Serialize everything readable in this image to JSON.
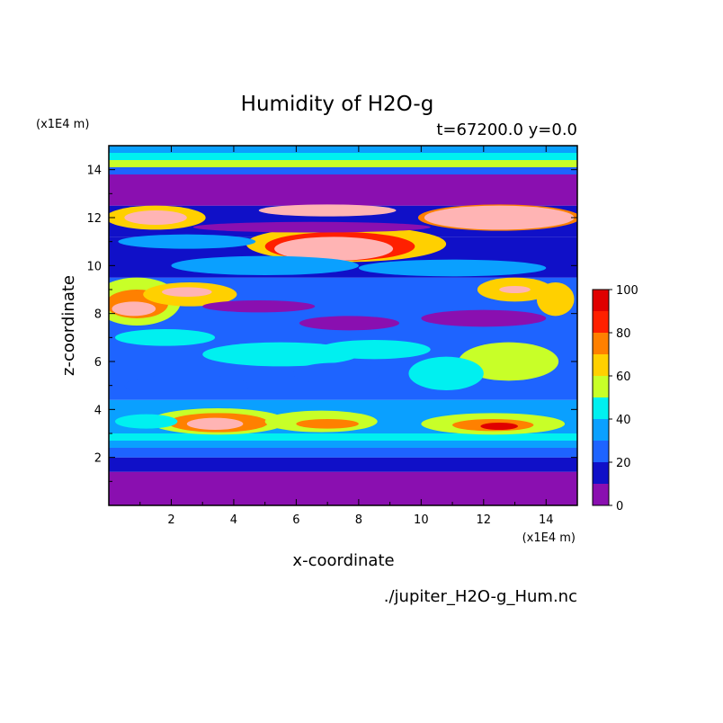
{
  "chart_data": {
    "type": "heatmap",
    "title": "Humidity of H2O-g",
    "subtitle": "t=67200.0 y=0.0",
    "xlabel": "x-coordinate",
    "ylabel": "z-coordinate",
    "x_unit": "(x1E4 m)",
    "y_unit": "(x1E4 m)",
    "source": "./jupiter_H2O-g_Hum.nc",
    "xlim": [
      0,
      15
    ],
    "ylim": [
      0,
      15
    ],
    "x_ticks": [
      "2",
      "4",
      "6",
      "8",
      "10",
      "12",
      "14"
    ],
    "y_ticks": [
      "2",
      "4",
      "6",
      "8",
      "10",
      "12",
      "14"
    ],
    "x_tick_values": [
      2,
      4,
      6,
      8,
      10,
      12,
      14
    ],
    "y_tick_values": [
      2,
      4,
      6,
      8,
      10,
      12,
      14
    ],
    "colorbar": {
      "levels": [
        0,
        10,
        20,
        30,
        40,
        50,
        60,
        70,
        80,
        90,
        100
      ],
      "labels": [
        "0",
        "20",
        "40",
        "60",
        "80",
        "100"
      ],
      "label_values": [
        0,
        20,
        40,
        60,
        80,
        100
      ],
      "colors": [
        "#8a0fb0",
        "#1010c8",
        "#1e64ff",
        "#0aa0ff",
        "#00f0f0",
        "#c8ff28",
        "#ffd000",
        "#ff8000",
        "#ff2000",
        "#e00000",
        "#ffb4b4"
      ]
    },
    "background_layers": [
      {
        "zmin": 0,
        "zmax": 1.4,
        "value": 5
      },
      {
        "zmin": 1.4,
        "zmax": 2.0,
        "value": 15
      },
      {
        "zmin": 2.0,
        "zmax": 2.4,
        "value": 25
      },
      {
        "zmin": 2.4,
        "zmax": 2.7,
        "value": 35
      },
      {
        "zmin": 2.7,
        "zmax": 3.0,
        "value": 45
      },
      {
        "zmin": 3.0,
        "zmax": 4.4,
        "value": 30
      },
      {
        "zmin": 4.4,
        "zmax": 9.5,
        "value": 20
      },
      {
        "zmin": 9.5,
        "zmax": 11.2,
        "value": 15
      },
      {
        "zmin": 11.2,
        "zmax": 12.5,
        "value": 15
      },
      {
        "zmin": 12.5,
        "zmax": 13.8,
        "value": 5
      },
      {
        "zmin": 13.8,
        "zmax": 14.1,
        "value": 25
      },
      {
        "zmin": 14.1,
        "zmax": 14.4,
        "value": 55
      },
      {
        "zmin": 14.4,
        "zmax": 14.7,
        "value": 45
      },
      {
        "zmin": 14.7,
        "zmax": 15.0,
        "value": 30
      }
    ],
    "features": [
      {
        "x": 3.5,
        "z": 3.5,
        "rx": 2.2,
        "rz": 0.55,
        "value": 55
      },
      {
        "x": 3.5,
        "z": 3.45,
        "rx": 1.6,
        "rz": 0.4,
        "value": 75
      },
      {
        "x": 3.4,
        "z": 3.4,
        "rx": 0.9,
        "rz": 0.25,
        "value": 100
      },
      {
        "x": 6.8,
        "z": 3.5,
        "rx": 1.8,
        "rz": 0.45,
        "value": 55
      },
      {
        "x": 7.0,
        "z": 3.4,
        "rx": 1.0,
        "rz": 0.2,
        "value": 75
      },
      {
        "x": 12.3,
        "z": 3.4,
        "rx": 2.3,
        "rz": 0.45,
        "value": 55
      },
      {
        "x": 12.3,
        "z": 3.35,
        "rx": 1.3,
        "rz": 0.25,
        "value": 75
      },
      {
        "x": 12.5,
        "z": 3.3,
        "rx": 0.6,
        "rz": 0.15,
        "value": 90
      },
      {
        "x": 1.2,
        "z": 3.5,
        "rx": 1.0,
        "rz": 0.3,
        "value": 45
      },
      {
        "x": 0.9,
        "z": 8.5,
        "rx": 1.4,
        "rz": 1.0,
        "value": 55
      },
      {
        "x": 0.9,
        "z": 8.4,
        "rx": 1.0,
        "rz": 0.6,
        "value": 75
      },
      {
        "x": 0.8,
        "z": 8.2,
        "rx": 0.7,
        "rz": 0.3,
        "value": 100
      },
      {
        "x": 2.6,
        "z": 8.8,
        "rx": 1.5,
        "rz": 0.5,
        "value": 60
      },
      {
        "x": 2.5,
        "z": 8.9,
        "rx": 0.8,
        "rz": 0.2,
        "value": 100
      },
      {
        "x": 13.0,
        "z": 9.0,
        "rx": 1.2,
        "rz": 0.5,
        "value": 60
      },
      {
        "x": 13.0,
        "z": 9.0,
        "rx": 0.5,
        "rz": 0.15,
        "value": 100
      },
      {
        "x": 14.3,
        "z": 8.6,
        "rx": 0.6,
        "rz": 0.7,
        "value": 60
      },
      {
        "x": 7.6,
        "z": 10.9,
        "rx": 3.2,
        "rz": 0.75,
        "value": 60
      },
      {
        "x": 7.4,
        "z": 10.8,
        "rx": 2.4,
        "rz": 0.6,
        "value": 80
      },
      {
        "x": 7.2,
        "z": 10.7,
        "rx": 1.9,
        "rz": 0.5,
        "value": 100
      },
      {
        "x": 1.5,
        "z": 12.0,
        "rx": 1.6,
        "rz": 0.5,
        "value": 60
      },
      {
        "x": 1.5,
        "z": 12.0,
        "rx": 1.0,
        "rz": 0.3,
        "value": 100
      },
      {
        "x": 7.0,
        "z": 12.3,
        "rx": 2.2,
        "rz": 0.25,
        "value": 100
      },
      {
        "x": 12.5,
        "z": 12.0,
        "rx": 2.6,
        "rz": 0.55,
        "value": 70
      },
      {
        "x": 12.5,
        "z": 12.0,
        "rx": 2.4,
        "rz": 0.5,
        "value": 100
      },
      {
        "x": 5.0,
        "z": 10.0,
        "rx": 3.0,
        "rz": 0.4,
        "value": 35
      },
      {
        "x": 11.0,
        "z": 9.9,
        "rx": 3.0,
        "rz": 0.35,
        "value": 35
      },
      {
        "x": 1.8,
        "z": 7.0,
        "rx": 1.6,
        "rz": 0.35,
        "value": 45
      },
      {
        "x": 5.5,
        "z": 6.3,
        "rx": 2.5,
        "rz": 0.5,
        "value": 45
      },
      {
        "x": 8.5,
        "z": 6.5,
        "rx": 1.8,
        "rz": 0.4,
        "value": 45
      },
      {
        "x": 12.8,
        "z": 6.0,
        "rx": 1.6,
        "rz": 0.8,
        "value": 50
      },
      {
        "x": 12.9,
        "z": 6.0,
        "rx": 0.5,
        "rz": 0.3,
        "value": 55
      },
      {
        "x": 10.8,
        "z": 5.5,
        "rx": 1.2,
        "rz": 0.7,
        "value": 45
      },
      {
        "x": 7.3,
        "z": 5.5,
        "rx": 1.4,
        "rz": 0.45,
        "value": 25
      },
      {
        "x": 2.5,
        "z": 5.0,
        "rx": 2.0,
        "rz": 0.45,
        "value": 25
      },
      {
        "x": 7.7,
        "z": 7.6,
        "rx": 1.6,
        "rz": 0.3,
        "value": 5
      },
      {
        "x": 4.8,
        "z": 8.3,
        "rx": 1.8,
        "rz": 0.25,
        "value": 5
      },
      {
        "x": 12.0,
        "z": 7.8,
        "rx": 2.0,
        "rz": 0.35,
        "value": 5
      },
      {
        "x": 6.5,
        "z": 11.6,
        "rx": 3.8,
        "rz": 0.22,
        "value": 5
      },
      {
        "x": 2.5,
        "z": 11.0,
        "rx": 2.2,
        "rz": 0.3,
        "value": 35
      }
    ]
  }
}
